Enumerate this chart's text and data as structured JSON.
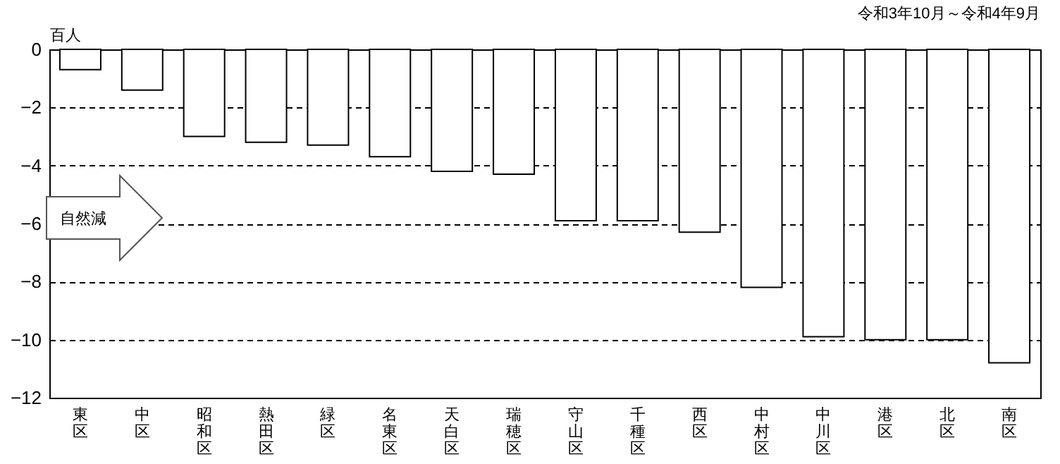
{
  "chart_data": {
    "type": "bar",
    "title": "令和3年10月～令和4年9月",
    "ylabel": "百人",
    "categories": [
      "東区",
      "中区",
      "昭和区",
      "熱田区",
      "緑区",
      "名東区",
      "天白区",
      "瑞穂区",
      "守山区",
      "千種区",
      "西区",
      "中村区",
      "中川区",
      "港区",
      "北区",
      "南区"
    ],
    "values": [
      -0.7,
      -1.4,
      -3.0,
      -3.2,
      -3.3,
      -3.7,
      -4.2,
      -4.3,
      -5.9,
      -5.9,
      -6.3,
      -8.2,
      -9.9,
      -10.0,
      -10.0,
      -10.8
    ],
    "color": "#ffffff",
    "ylim": [
      -12,
      0
    ],
    "yticks": [
      0,
      -2,
      -4,
      -6,
      -8,
      -10,
      -12
    ],
    "grid": "y",
    "annotations": [
      "自然減"
    ]
  }
}
